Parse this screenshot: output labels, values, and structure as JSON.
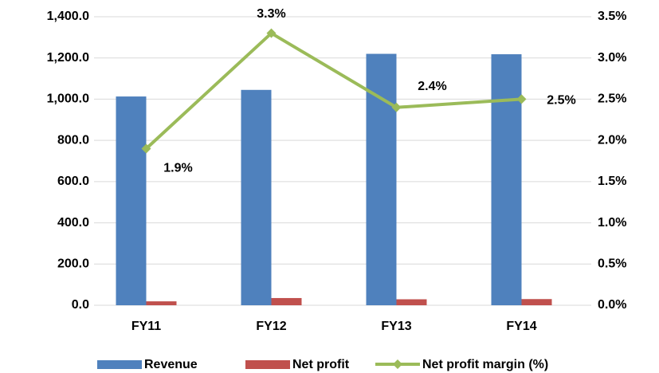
{
  "chart_data": {
    "type": "bar_line",
    "categories": [
      "FY11",
      "FY12",
      "FY13",
      "FY14"
    ],
    "series": [
      {
        "name": "Revenue",
        "color": "#4f81bd",
        "values": [
          1013,
          1045,
          1220,
          1218
        ]
      },
      {
        "name": "Net profit",
        "color": "#c0504d",
        "values": [
          19,
          35,
          29,
          30
        ]
      },
      {
        "name": "Net profit margin (%)",
        "color": "#9bbb59",
        "axis": "y2",
        "kind": "line",
        "values": [
          1.9,
          3.3,
          2.4,
          2.5
        ],
        "value_labels": [
          "1.9%",
          "3.3%",
          "2.4%",
          "2.5%"
        ]
      }
    ],
    "ylim": [
      0,
      1400
    ],
    "yticks": [
      {
        "value": 0,
        "label": "0.0"
      },
      {
        "value": 200,
        "label": "200.0"
      },
      {
        "value": 400,
        "label": "400.0"
      },
      {
        "value": 600,
        "label": "600.0"
      },
      {
        "value": 800,
        "label": "800.0"
      },
      {
        "value": 1000,
        "label": "1,000.0"
      },
      {
        "value": 1200,
        "label": "1,200.0"
      },
      {
        "value": 1400,
        "label": "1,400.0"
      }
    ],
    "y2lim": [
      0,
      3.5
    ],
    "y2ticks": [
      {
        "value": 0,
        "label": "0.0%"
      },
      {
        "value": 0.5,
        "label": "0.5%"
      },
      {
        "value": 1,
        "label": "1.0%"
      },
      {
        "value": 1.5,
        "label": "1.5%"
      },
      {
        "value": 2,
        "label": "2.0%"
      },
      {
        "value": 2.5,
        "label": "2.5%"
      },
      {
        "value": 3,
        "label": "3.0%"
      },
      {
        "value": 3.5,
        "label": "3.5%"
      }
    ],
    "grid": true,
    "legend": "bottom"
  }
}
